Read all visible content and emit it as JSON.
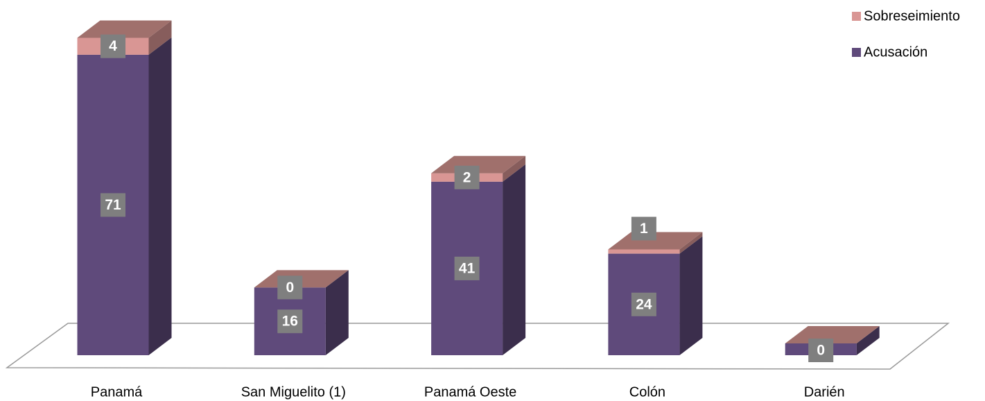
{
  "chart_data": {
    "type": "bar3d_stacked",
    "categories": [
      "Panamá",
      "San Miguelito (1)",
      "Panamá Oeste",
      "Colón",
      "Darién"
    ],
    "series": [
      {
        "name": "Acusación",
        "color": "#5f4a7b",
        "values": [
          71,
          16,
          41,
          24,
          0
        ]
      },
      {
        "name": "Sobreseimiento",
        "color": "#d99694",
        "values": [
          4,
          0,
          2,
          1,
          0
        ],
        "value_labels": [
          "4",
          "0",
          "2",
          "1",
          null
        ]
      }
    ],
    "legend": "top-right"
  }
}
